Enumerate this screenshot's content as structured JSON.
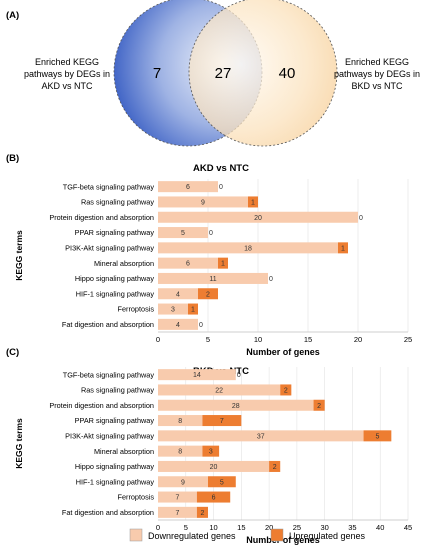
{
  "panel_labels": {
    "a": "(A)",
    "b": "(B)",
    "c": "(C)"
  },
  "venn": {
    "left_label": [
      "Enriched KEGG",
      "pathways by DEGs in",
      "AKD vs NTC"
    ],
    "right_label": [
      "Enriched KEGG",
      "pathways by DEGs in",
      "BKD vs NTC"
    ],
    "left_only": "7",
    "overlap": "27",
    "right_only": "40",
    "left_color": "#3a5fc4",
    "right_color": "#f5c98c"
  },
  "colors": {
    "down": "#f8cbad",
    "up": "#ed7d31"
  },
  "legend": {
    "down": "Downregulated genes",
    "up": "Upregulated genes"
  },
  "chart_data": [
    {
      "type": "bar",
      "orientation": "horizontal",
      "stacked": true,
      "title": "AKD vs NTC",
      "xlabel": "Number of genes",
      "ylabel": "KEGG terms",
      "xlim": [
        0,
        25
      ],
      "xticks": [
        0,
        5,
        10,
        15,
        20,
        25
      ],
      "categories": [
        "TGF-beta signaling pathway",
        "Ras signaling pathway",
        "Protein digestion and absorption",
        "PPAR signaling pathway",
        "PI3K-Akt signaling pathway",
        "Mineral absorption",
        "Hippo signaling pathway",
        "HIF-1 signaling pathway",
        "Ferroptosis",
        "Fat digestion and absorption"
      ],
      "series": [
        {
          "name": "Downregulated genes",
          "values": [
            6,
            9,
            20,
            5,
            18,
            6,
            11,
            4,
            3,
            4
          ]
        },
        {
          "name": "Upregulated genes",
          "values": [
            0,
            1,
            0,
            0,
            1,
            1,
            0,
            2,
            1,
            0
          ]
        }
      ]
    },
    {
      "type": "bar",
      "orientation": "horizontal",
      "stacked": true,
      "title": "BKD vs NTC",
      "xlabel": "Number of genes",
      "ylabel": "KEGG terms",
      "xlim": [
        0,
        45
      ],
      "xticks": [
        0,
        5,
        10,
        15,
        20,
        25,
        30,
        35,
        40,
        45
      ],
      "categories": [
        "TGF-beta signaling pathway",
        "Ras signaling pathway",
        "Protein digestion and absorption",
        "PPAR signaling pathway",
        "PI3K-Akt signaling pathway",
        "Mineral absorption",
        "Hippo signaling pathway",
        "HIF-1 signaling pathway",
        "Ferroptosis",
        "Fat digestion and absorption"
      ],
      "series": [
        {
          "name": "Downregulated genes",
          "values": [
            14,
            22,
            28,
            8,
            37,
            8,
            20,
            9,
            7,
            7
          ]
        },
        {
          "name": "Upregulated genes",
          "values": [
            0,
            2,
            2,
            7,
            5,
            3,
            2,
            5,
            6,
            2
          ]
        }
      ]
    }
  ]
}
